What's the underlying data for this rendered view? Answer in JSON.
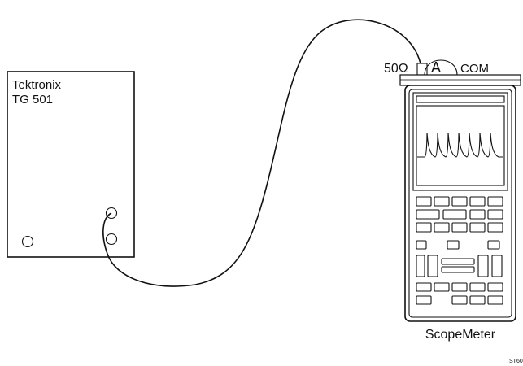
{
  "generator": {
    "brand": "Tektronix",
    "model": "TG 501"
  },
  "scopemeter": {
    "name": "ScopeMeter",
    "input_impedance": "50Ω",
    "channel": "A",
    "common": "COM"
  },
  "figure_code": "ST60"
}
